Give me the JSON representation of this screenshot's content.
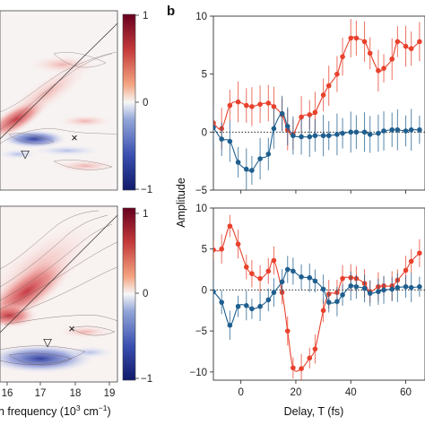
{
  "figure": {
    "panel_b_letter": "b",
    "bottom_left_label": "n frequency (10",
    "bottom_left_label_exp": "3",
    "bottom_left_label_unit_a": " cm",
    "bottom_left_label_unit_exp": "−1",
    "bottom_left_label_end": ")",
    "cross_marker": "×",
    "triangle_marker": "▽"
  },
  "colors": {
    "red_series": "#e8412c",
    "blue_series": "#1f5f8f",
    "map_red": "#b2182b",
    "map_blue": "#2b3a9b"
  },
  "chart_data": [
    {
      "type": "heatmap",
      "panel": "top-left",
      "colorbar_ticks": [
        "1",
        "0",
        "−1"
      ],
      "colorbar_range": [
        -1,
        1
      ],
      "colormap": "blue-white-red"
    },
    {
      "type": "heatmap",
      "panel": "bottom-left",
      "colorbar_ticks": [
        "1",
        "0",
        "−1"
      ],
      "colorbar_range": [
        -1,
        1
      ],
      "colormap": "blue-white-red",
      "x_ticks": [
        "16",
        "17",
        "18",
        "19"
      ],
      "xlabel": "n frequency (10³ cm⁻¹)"
    },
    {
      "type": "scatter",
      "panel": "b-top",
      "ylabel": "Amplitude",
      "ylim": [
        -5,
        10
      ],
      "xlim": [
        -10,
        67
      ],
      "y_ticks": [
        "10",
        "5",
        "0",
        "−5"
      ],
      "series": [
        {
          "color": "red",
          "x": [
            -10,
            -7,
            -4,
            -1,
            2,
            4,
            7,
            10,
            12,
            15,
            17,
            19,
            22,
            25,
            27,
            30,
            32,
            35,
            37,
            40,
            42,
            45,
            47,
            50,
            52,
            55,
            57,
            60,
            62,
            65
          ],
          "y": [
            0.8,
            0.3,
            2.3,
            2.6,
            2.3,
            2.2,
            2.4,
            2.5,
            2.2,
            1.5,
            0.2,
            -0.2,
            1.3,
            1.5,
            1.7,
            3.2,
            4.0,
            5.0,
            6.5,
            8.1,
            8.1,
            7.8,
            6.8,
            5.3,
            5.5,
            6.3,
            7.8,
            7.4,
            7.2,
            7.8
          ]
        },
        {
          "color": "blue",
          "x": [
            -10,
            -7,
            -4,
            -1,
            2,
            4,
            7,
            10,
            12,
            15,
            17,
            19,
            22,
            25,
            27,
            30,
            32,
            35,
            37,
            40,
            42,
            45,
            47,
            50,
            52,
            55,
            57,
            60,
            62,
            65
          ],
          "y": [
            0.4,
            -0.6,
            -0.8,
            -2.6,
            -3.2,
            -3.3,
            -2.3,
            -1.9,
            0.3,
            1.6,
            0.5,
            -0.3,
            -0.4,
            -0.4,
            -0.3,
            -0.3,
            -0.3,
            -0.2,
            -0.1,
            0.0,
            0.0,
            0.0,
            -0.2,
            -0.1,
            0.1,
            0.2,
            0.2,
            0.1,
            0.2,
            0.2
          ]
        }
      ]
    },
    {
      "type": "scatter",
      "panel": "b-bottom",
      "xlabel": "Delay, T (fs)",
      "ylim": [
        -11,
        10
      ],
      "xlim": [
        -10,
        67
      ],
      "y_ticks": [
        "10",
        "5",
        "0",
        "−5",
        "−10"
      ],
      "x_ticks": [
        "0",
        "20",
        "40",
        "60"
      ],
      "series": [
        {
          "color": "red",
          "x": [
            -10,
            -7,
            -4,
            -1,
            2,
            4,
            7,
            10,
            12,
            15,
            17,
            19,
            22,
            25,
            27,
            30,
            32,
            35,
            37,
            40,
            42,
            45,
            47,
            50,
            52,
            55,
            57,
            60,
            62,
            65
          ],
          "y": [
            4.9,
            5.0,
            7.8,
            5.6,
            2.8,
            2.0,
            1.4,
            2.3,
            3.6,
            -0.3,
            -5.0,
            -9.5,
            -9.6,
            -8.3,
            -7.2,
            -2.5,
            -0.5,
            -0.3,
            1.4,
            1.5,
            1.4,
            0.8,
            -0.2,
            0.4,
            0.5,
            0.5,
            1.2,
            2.4,
            3.5,
            4.5
          ]
        },
        {
          "color": "blue",
          "x": [
            -10,
            -7,
            -4,
            -1,
            2,
            4,
            7,
            10,
            12,
            15,
            17,
            19,
            22,
            25,
            27,
            30,
            32,
            35,
            37,
            40,
            42,
            45,
            47,
            50,
            52,
            55,
            57,
            60,
            62,
            65
          ],
          "y": [
            -0.2,
            -1.5,
            -4.3,
            -2.0,
            -1.9,
            -2.3,
            -2.0,
            -1.2,
            -0.3,
            1.0,
            2.5,
            2.3,
            1.6,
            1.5,
            1.1,
            0.1,
            -1.5,
            -1.4,
            -0.6,
            0.5,
            0.4,
            0.2,
            -0.4,
            -0.2,
            0.0,
            0.1,
            0.3,
            0.4,
            0.3,
            0.4
          ]
        }
      ]
    }
  ]
}
